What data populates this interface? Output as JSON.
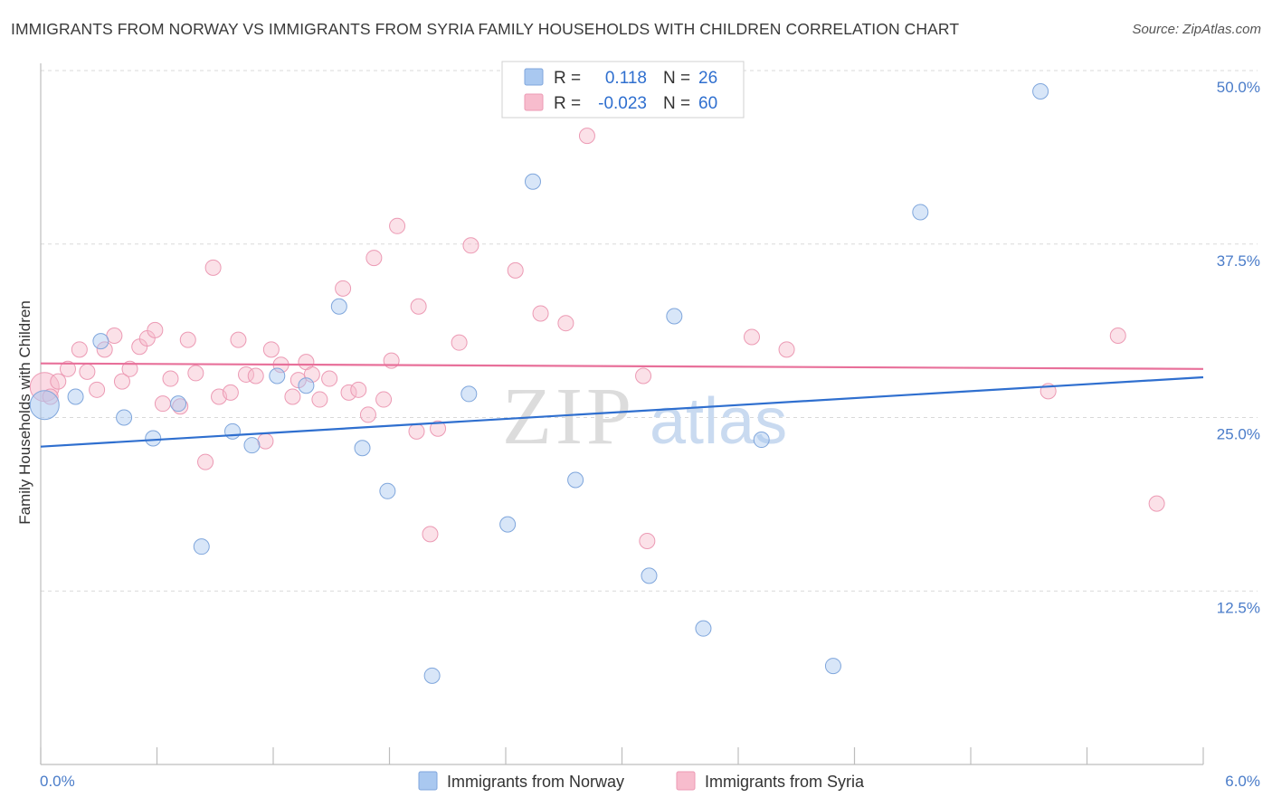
{
  "header": {
    "title": "IMMIGRANTS FROM NORWAY VS IMMIGRANTS FROM SYRIA FAMILY HOUSEHOLDS WITH CHILDREN CORRELATION CHART",
    "source": "Source: ZipAtlas.com"
  },
  "watermark": {
    "zip": "ZIP",
    "atlas": "atlas"
  },
  "colors": {
    "norway_fill": "#a9c8f0",
    "norway_stroke": "#7fa6dc",
    "norway_line": "#2f6fcf",
    "syria_fill": "#f7bccd",
    "syria_stroke": "#ec9ab4",
    "syria_line": "#e8709a",
    "tick_text": "#4a7cc9",
    "grid": "#d9d9d9"
  },
  "stats_legend": [
    {
      "r_label": "R =",
      "r_value": "0.118",
      "n_label": "N =",
      "n_value": "26"
    },
    {
      "r_label": "R =",
      "r_value": "-0.023",
      "n_label": "N =",
      "n_value": "60"
    }
  ],
  "chart_data": {
    "type": "scatter",
    "title": "IMMIGRANTS FROM NORWAY VS IMMIGRANTS FROM SYRIA FAMILY HOUSEHOLDS WITH CHILDREN CORRELATION CHART",
    "xlabel": "",
    "ylabel": "Family Households with Children",
    "xlim": [
      0,
      6.0
    ],
    "ylim": [
      0,
      50.0
    ],
    "x_ticks_labels": [
      "0.0%",
      "6.0%"
    ],
    "y_ticks": [
      12.5,
      25.0,
      37.5,
      50.0
    ],
    "y_tick_labels": [
      "12.5%",
      "25.0%",
      "37.5%",
      "50.0%"
    ],
    "grid": true,
    "legend_position": "bottom",
    "series": [
      {
        "name": "Immigrants from Norway",
        "trend": {
          "x": [
            0,
            6.0
          ],
          "y": [
            22.9,
            27.9
          ]
        },
        "points": [
          {
            "x": 0.02,
            "y": 25.9,
            "big": true
          },
          {
            "x": 0.18,
            "y": 26.5
          },
          {
            "x": 0.31,
            "y": 30.5
          },
          {
            "x": 0.43,
            "y": 25.0
          },
          {
            "x": 0.58,
            "y": 23.5
          },
          {
            "x": 0.71,
            "y": 26.0
          },
          {
            "x": 0.83,
            "y": 15.7
          },
          {
            "x": 0.99,
            "y": 24.0
          },
          {
            "x": 1.09,
            "y": 23.0
          },
          {
            "x": 1.22,
            "y": 28.0
          },
          {
            "x": 1.37,
            "y": 27.3
          },
          {
            "x": 1.54,
            "y": 33.0
          },
          {
            "x": 1.66,
            "y": 22.8
          },
          {
            "x": 1.79,
            "y": 19.7
          },
          {
            "x": 2.02,
            "y": 6.4
          },
          {
            "x": 2.21,
            "y": 26.7
          },
          {
            "x": 2.41,
            "y": 17.3
          },
          {
            "x": 2.54,
            "y": 42.0
          },
          {
            "x": 2.76,
            "y": 20.5
          },
          {
            "x": 3.14,
            "y": 13.6
          },
          {
            "x": 3.27,
            "y": 32.3
          },
          {
            "x": 3.42,
            "y": 9.8
          },
          {
            "x": 3.72,
            "y": 23.4
          },
          {
            "x": 4.09,
            "y": 7.1
          },
          {
            "x": 4.54,
            "y": 39.8
          },
          {
            "x": 5.16,
            "y": 48.5
          }
        ]
      },
      {
        "name": "Immigrants from Syria",
        "trend": {
          "x": [
            0,
            6.0
          ],
          "y": [
            28.9,
            28.5
          ]
        },
        "points": [
          {
            "x": 0.02,
            "y": 27.2,
            "big": true
          },
          {
            "x": 0.05,
            "y": 26.5
          },
          {
            "x": 0.09,
            "y": 27.6
          },
          {
            "x": 0.14,
            "y": 28.5
          },
          {
            "x": 0.2,
            "y": 29.9
          },
          {
            "x": 0.24,
            "y": 28.3
          },
          {
            "x": 0.29,
            "y": 27.0
          },
          {
            "x": 0.33,
            "y": 29.9
          },
          {
            "x": 0.38,
            "y": 30.9
          },
          {
            "x": 0.42,
            "y": 27.6
          },
          {
            "x": 0.46,
            "y": 28.5
          },
          {
            "x": 0.51,
            "y": 30.1
          },
          {
            "x": 0.55,
            "y": 30.7
          },
          {
            "x": 0.59,
            "y": 31.3
          },
          {
            "x": 0.63,
            "y": 26.0
          },
          {
            "x": 0.67,
            "y": 27.8
          },
          {
            "x": 0.72,
            "y": 25.8
          },
          {
            "x": 0.76,
            "y": 30.6
          },
          {
            "x": 0.8,
            "y": 28.2
          },
          {
            "x": 0.85,
            "y": 21.8
          },
          {
            "x": 0.89,
            "y": 35.8
          },
          {
            "x": 0.92,
            "y": 26.5
          },
          {
            "x": 0.98,
            "y": 26.8
          },
          {
            "x": 1.02,
            "y": 30.6
          },
          {
            "x": 1.06,
            "y": 28.1
          },
          {
            "x": 1.11,
            "y": 28.0
          },
          {
            "x": 1.16,
            "y": 23.3
          },
          {
            "x": 1.19,
            "y": 29.9
          },
          {
            "x": 1.24,
            "y": 28.8
          },
          {
            "x": 1.3,
            "y": 26.5
          },
          {
            "x": 1.33,
            "y": 27.7
          },
          {
            "x": 1.37,
            "y": 29.0
          },
          {
            "x": 1.4,
            "y": 28.1
          },
          {
            "x": 1.44,
            "y": 26.3
          },
          {
            "x": 1.49,
            "y": 27.8
          },
          {
            "x": 1.56,
            "y": 34.3
          },
          {
            "x": 1.59,
            "y": 26.8
          },
          {
            "x": 1.64,
            "y": 27.0
          },
          {
            "x": 1.69,
            "y": 25.2
          },
          {
            "x": 1.72,
            "y": 36.5
          },
          {
            "x": 1.77,
            "y": 26.3
          },
          {
            "x": 1.81,
            "y": 29.1
          },
          {
            "x": 1.84,
            "y": 38.8
          },
          {
            "x": 1.94,
            "y": 24.0
          },
          {
            "x": 1.95,
            "y": 33.0
          },
          {
            "x": 2.01,
            "y": 16.6
          },
          {
            "x": 2.05,
            "y": 24.2
          },
          {
            "x": 2.16,
            "y": 30.4
          },
          {
            "x": 2.22,
            "y": 37.4
          },
          {
            "x": 2.45,
            "y": 35.6
          },
          {
            "x": 2.58,
            "y": 32.5
          },
          {
            "x": 2.71,
            "y": 31.8
          },
          {
            "x": 2.82,
            "y": 45.3
          },
          {
            "x": 3.11,
            "y": 28.0
          },
          {
            "x": 3.13,
            "y": 16.1
          },
          {
            "x": 3.67,
            "y": 30.8
          },
          {
            "x": 3.85,
            "y": 29.9
          },
          {
            "x": 5.2,
            "y": 26.9
          },
          {
            "x": 5.56,
            "y": 30.9
          },
          {
            "x": 5.76,
            "y": 18.8
          }
        ]
      }
    ]
  },
  "bottom_legend": [
    {
      "label": "Immigrants from Norway"
    },
    {
      "label": "Immigrants from Syria"
    }
  ]
}
